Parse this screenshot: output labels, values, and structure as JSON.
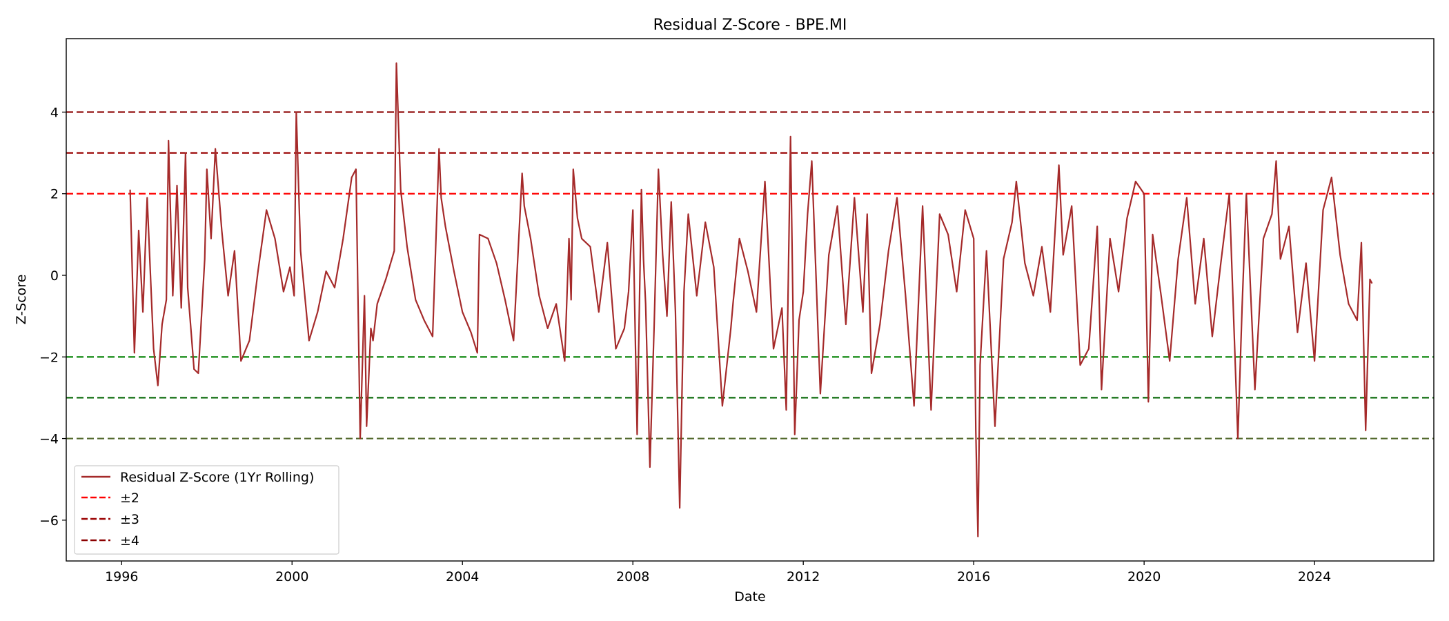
{
  "chart_data": {
    "type": "line",
    "title": "Residual Z-Score - BPE.MI",
    "xlabel": "Date",
    "ylabel": "Z-Score",
    "xlim": [
      1994.7,
      2026.8
    ],
    "ylim": [
      -7.0,
      5.8
    ],
    "x_ticks": [
      1996,
      2000,
      2004,
      2008,
      2012,
      2016,
      2020,
      2024
    ],
    "y_ticks": [
      4,
      2,
      0,
      -2,
      -4,
      -6
    ],
    "y_tick_labels": [
      "4",
      "2",
      "0",
      "−2",
      "−4",
      "−6"
    ],
    "grid": false,
    "legend_position": "lower-left",
    "series": [
      {
        "name": "Residual Z-Score (1Yr Rolling)",
        "color": "#a52a2a",
        "style": "solid",
        "x": [
          1996.2,
          1996.3,
          1996.4,
          1996.5,
          1996.6,
          1996.75,
          1996.85,
          1996.95,
          1997.05,
          1997.1,
          1997.2,
          1997.3,
          1997.4,
          1997.5,
          1997.55,
          1997.7,
          1997.8,
          1997.95,
          1998.0,
          1998.1,
          1998.2,
          1998.35,
          1998.5,
          1998.65,
          1998.8,
          1999.0,
          1999.2,
          1999.4,
          1999.6,
          1999.8,
          1999.95,
          2000.05,
          2000.1,
          2000.2,
          2000.4,
          2000.6,
          2000.8,
          2001.0,
          2001.2,
          2001.4,
          2001.5,
          2001.6,
          2001.7,
          2001.75,
          2001.85,
          2001.9,
          2002.0,
          2002.2,
          2002.4,
          2002.45,
          2002.55,
          2002.7,
          2002.9,
          2003.1,
          2003.3,
          2003.45,
          2003.5,
          2003.6,
          2003.8,
          2004.0,
          2004.2,
          2004.35,
          2004.4,
          2004.6,
          2004.8,
          2005.0,
          2005.2,
          2005.4,
          2005.45,
          2005.6,
          2005.8,
          2006.0,
          2006.2,
          2006.4,
          2006.5,
          2006.55,
          2006.6,
          2006.7,
          2006.8,
          2007.0,
          2007.2,
          2007.4,
          2007.6,
          2007.8,
          2007.9,
          2008.0,
          2008.1,
          2008.2,
          2008.25,
          2008.3,
          2008.4,
          2008.5,
          2008.6,
          2008.7,
          2008.8,
          2008.9,
          2009.0,
          2009.1,
          2009.2,
          2009.3,
          2009.5,
          2009.7,
          2009.9,
          2010.1,
          2010.3,
          2010.35,
          2010.5,
          2010.7,
          2010.9,
          2011.1,
          2011.3,
          2011.5,
          2011.6,
          2011.7,
          2011.8,
          2011.9,
          2012.0,
          2012.1,
          2012.2,
          2012.4,
          2012.6,
          2012.8,
          2013.0,
          2013.2,
          2013.4,
          2013.5,
          2013.6,
          2013.8,
          2014.0,
          2014.2,
          2014.4,
          2014.6,
          2014.8,
          2015.0,
          2015.2,
          2015.4,
          2015.6,
          2015.8,
          2016.0,
          2016.05,
          2016.1,
          2016.15,
          2016.3,
          2016.5,
          2016.7,
          2016.9,
          2017.0,
          2017.2,
          2017.4,
          2017.6,
          2017.8,
          2018.0,
          2018.1,
          2018.3,
          2018.5,
          2018.7,
          2018.9,
          2019.0,
          2019.2,
          2019.4,
          2019.6,
          2019.8,
          2020.0,
          2020.1,
          2020.2,
          2020.4,
          2020.6,
          2020.8,
          2021.0,
          2021.2,
          2021.4,
          2021.6,
          2021.8,
          2022.0,
          2022.2,
          2022.3,
          2022.4,
          2022.6,
          2022.8,
          2023.0,
          2023.1,
          2023.2,
          2023.4,
          2023.6,
          2023.8,
          2024.0,
          2024.2,
          2024.4,
          2024.6,
          2024.8,
          2025.0,
          2025.1,
          2025.2,
          2025.3,
          2025.35
        ],
        "y": [
          2.1,
          -1.9,
          1.1,
          -0.9,
          1.9,
          -1.8,
          -2.7,
          -1.2,
          -0.6,
          3.3,
          -0.5,
          2.2,
          -0.8,
          3.0,
          -0.3,
          -2.3,
          -2.4,
          0.4,
          2.6,
          0.9,
          3.1,
          1.1,
          -0.5,
          0.6,
          -2.1,
          -1.6,
          0.1,
          1.6,
          0.9,
          -0.4,
          0.2,
          -0.5,
          4.0,
          0.6,
          -1.6,
          -0.9,
          0.1,
          -0.3,
          0.9,
          2.4,
          2.6,
          -4.0,
          -0.5,
          -3.7,
          -1.3,
          -1.6,
          -0.7,
          -0.1,
          0.6,
          5.2,
          2.1,
          0.7,
          -0.6,
          -1.1,
          -1.5,
          3.1,
          1.9,
          1.2,
          0.1,
          -0.9,
          -1.4,
          -1.9,
          1.0,
          0.9,
          0.3,
          -0.6,
          -1.6,
          2.5,
          1.7,
          0.9,
          -0.5,
          -1.3,
          -0.7,
          -2.1,
          0.9,
          -0.6,
          2.6,
          1.4,
          0.9,
          0.7,
          -0.9,
          0.8,
          -1.8,
          -1.3,
          -0.4,
          1.6,
          -3.9,
          2.1,
          0.4,
          -0.7,
          -4.7,
          -1.2,
          2.6,
          0.5,
          -1.0,
          1.8,
          -0.9,
          -5.7,
          -0.4,
          1.5,
          -0.5,
          1.3,
          0.2,
          -3.2,
          -1.3,
          -0.7,
          0.9,
          0.1,
          -0.9,
          2.3,
          -1.8,
          -0.8,
          -3.3,
          3.4,
          -3.9,
          -1.1,
          -0.4,
          1.5,
          2.8,
          -2.9,
          0.5,
          1.7,
          -1.2,
          1.9,
          -0.9,
          1.5,
          -2.4,
          -1.2,
          0.6,
          1.9,
          -0.5,
          -3.2,
          1.7,
          -3.3,
          1.5,
          1.0,
          -0.4,
          1.6,
          0.9,
          -3.8,
          -6.4,
          -2.2,
          0.6,
          -3.7,
          0.4,
          1.3,
          2.3,
          0.3,
          -0.5,
          0.7,
          -0.9,
          2.7,
          0.5,
          1.7,
          -2.2,
          -1.8,
          1.2,
          -2.8,
          0.9,
          -0.4,
          1.4,
          2.3,
          2.0,
          -3.1,
          1.0,
          -0.5,
          -2.1,
          0.4,
          1.9,
          -0.7,
          0.9,
          -1.5,
          0.3,
          2.0,
          -4.0,
          -0.8,
          2.0,
          -2.8,
          0.9,
          1.5,
          2.8,
          0.4,
          1.2,
          -1.4,
          0.3,
          -2.1,
          1.6,
          2.4,
          0.5,
          -0.7,
          -1.1,
          0.8,
          -3.8,
          -0.1,
          -0.2
        ]
      },
      {
        "name": "±2",
        "color": "#ff0000",
        "style": "dashed",
        "y": 2
      },
      {
        "name": "±3",
        "color": "#990000",
        "style": "dashed",
        "y": 3
      },
      {
        "name": "±4",
        "color": "#8b0000",
        "style": "dashed",
        "y": 4
      },
      {
        "color": "#008000",
        "style": "dashed",
        "y": -2
      },
      {
        "color": "#006400",
        "style": "dashed",
        "y": -3
      },
      {
        "color": "#556b2f",
        "style": "dashed",
        "y": -4
      }
    ]
  }
}
